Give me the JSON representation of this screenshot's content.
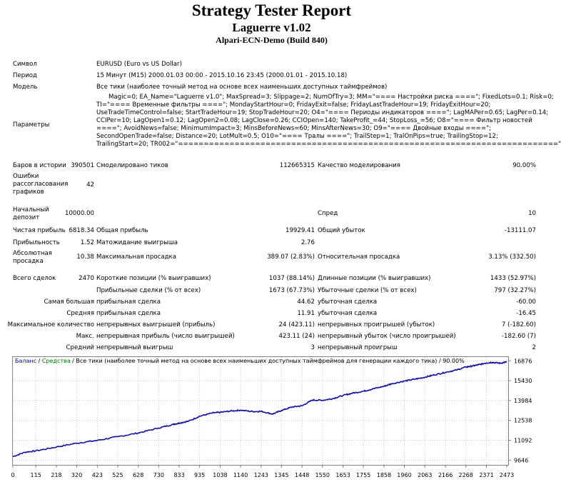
{
  "header": {
    "title": "Strategy Tester Report",
    "expert": "Laguerre v1.02",
    "server": "Alpari-ECN-Demo (Build 840)"
  },
  "info": {
    "symbol_label": "Символ",
    "symbol_value": "EURUSD (Euro vs US Dollar)",
    "period_label": "Период",
    "period_value": "15 Минут (M15) 2000.01.03 00:00 - 2015.10.16 23:45 (2000.01.01 - 2015.10.18)",
    "model_label": "Модель",
    "model_value": "Все тики (наиболее точный метод на основе всех наименьших доступных таймфреймов)",
    "params_label": "Параметры",
    "params_lines": [
      "Magic=0; EA_Name=\"Laguerre v1.0\"; MaxSpread=3; Slippage=2; NumOfTry=3; MM=\"==== Настройки риска ====\"; FixedLots=0.1; Risk=0;",
      "TI=\"==== Временные фильтры ====\"; MondayStartHour=0; FridayExit=false; FridayLastTradeHour=19; FridayExitHour=20;",
      "UseTradeTimeControl=false; StartTradeHour=19; StopTradeHour=20; O4=\"==== Периоды индикаторов ====\"; LagMAPer=0.65; LagPer=0.14;",
      "CCIPer=10; LagOpen1=0.12; LagOpen2=0.08; LagClose=0.26; CCIOpen=140; TakeProfit_=44; StopLoss_=56; O8=\"==== Фильтр новостей",
      "====\"; AvoidNews=false; MinimumImpact=3; MinsBeforeNews=60; MinsAfterNews=30; O9=\"==== Двойные входы ====\";",
      "SecondOpenTrade=false; Distance=20; LotMult=0.5; O10=\"==== Тралы ====\"; TrailStep=1; TralOnPips=true; TrailingStop=12;",
      "TrailingStart=20; TR002=\"==========================================================================\""
    ]
  },
  "stats": {
    "bars_label": "Баров в истории",
    "bars_value": "390501",
    "ticks_label": "Смоделировано тиков",
    "ticks_value": "112665315",
    "quality_label": "Качество моделирования",
    "quality_value": "90.00%",
    "errors_label_1": "Ошибки",
    "errors_label_2": "рассогласования",
    "errors_label_3": "графиков",
    "errors_value": "42",
    "deposit_label_1": "Начальный",
    "deposit_label_2": "депозит",
    "deposit_value": "10000.00",
    "spread_label": "Спред",
    "spread_value": "10",
    "net_label": "Чистая прибыль",
    "net_value": "6818.34",
    "gross_profit_label": "Общая прибыль",
    "gross_profit_value": "19929.41",
    "gross_loss_label": "Общий убыток",
    "gross_loss_value": "-13111.07",
    "pf_label": "Прибыльность",
    "pf_value": "1.52",
    "expected_label": "Матожидание выигрыша",
    "expected_value": "2.76",
    "abs_dd_label_1": "Абсолютная",
    "abs_dd_label_2": "просадка",
    "abs_dd_value": "10.38",
    "max_dd_label": "Максимальная просадка",
    "max_dd_value": "389.07 (2.83%)",
    "rel_dd_label": "Относительная просадка",
    "rel_dd_value": "3.13% (332.50)",
    "total_label": "Всего сделок",
    "total_value": "2470",
    "short_label": "Короткие позиции (% выигравших)",
    "short_value": "1037 (88.14%)",
    "long_label": "Длинные позиции (% выигравших)",
    "long_value": "1433 (52.97%)",
    "profit_trades_label": "Прибыльные сделки (% от всех)",
    "profit_trades_value": "1673 (67.73%)",
    "loss_trades_label": "Убыточные сделки (% от всех)",
    "loss_trades_value": "797 (32.27%)",
    "largest_label": "Самая большая",
    "largest_profit_label": "прибыльная сделка",
    "largest_profit_value": "44.62",
    "largest_loss_label": "убыточная сделка",
    "largest_loss_value": "-60.00",
    "average_label": "Средняя",
    "average_profit_label": "прибыльная сделка",
    "average_profit_value": "11.91",
    "average_loss_label": "убыточная сделка",
    "average_loss_value": "-16.45",
    "max_count_label": "Максимальное количество",
    "max_cons_wins_label": "непрерывных выигрышей (прибыль)",
    "max_cons_wins_value": "24 (423.11)",
    "max_cons_losses_label": "непрерывных проигрышей (убыток)",
    "max_cons_losses_value": "7 (-182.60)",
    "max_label": "Макс.",
    "max_cons_profit_label": "непрерывная прибыль (число выигрышей)",
    "max_cons_profit_value": "423.11 (24)",
    "max_cons_loss_label": "непрерывный убыток (число проигрышей)",
    "max_cons_loss_value": "-182.60 (7)",
    "avg_label": "Средний",
    "avg_cons_wins_label": "непрерывный выигрыш",
    "avg_cons_wins_value": "3",
    "avg_cons_losses_label": "непрерывный проигрыш",
    "avg_cons_losses_value": "2"
  },
  "chart_legend": {
    "balance": "Баланс",
    "sep1": " / ",
    "equity": "Средства",
    "rest": " / Все тики (наиболее точный метод на основе всех наименьших доступных таймфреймов для генерации каждого тика) / 90.00%"
  },
  "colors": {
    "balance": "#1010a0",
    "equity": "#008000",
    "grid": "#c8c8c8"
  },
  "chart_data": {
    "type": "line",
    "title": "",
    "xlabel": "",
    "ylabel": "",
    "x_ticks": [
      0,
      115,
      218,
      320,
      423,
      525,
      628,
      730,
      833,
      935,
      1038,
      1140,
      1243,
      1345,
      1448,
      1550,
      1653,
      1755,
      1858,
      1960,
      2063,
      2166,
      2268,
      2371,
      2473
    ],
    "y_ticks": [
      9646,
      11092,
      12538,
      13984,
      15430,
      16876
    ],
    "xlim": [
      0,
      2480
    ],
    "ylim": [
      9300,
      17150
    ],
    "series": [
      {
        "name": "Баланс",
        "x": [
          0,
          60,
          115,
          218,
          320,
          423,
          525,
          628,
          730,
          800,
          833,
          880,
          935,
          1000,
          1038,
          1090,
          1140,
          1200,
          1243,
          1300,
          1345,
          1400,
          1448,
          1500,
          1550,
          1600,
          1653,
          1700,
          1755,
          1800,
          1858,
          1900,
          1960,
          2010,
          2063,
          2110,
          2166,
          2220,
          2268,
          2300,
          2330,
          2371,
          2400,
          2440,
          2473
        ],
        "y": [
          9900,
          10220,
          10320,
          10600,
          10880,
          11080,
          11350,
          11620,
          11980,
          12240,
          12340,
          12480,
          12840,
          13080,
          13120,
          13220,
          13280,
          13180,
          13200,
          13000,
          13260,
          13520,
          13600,
          14020,
          14000,
          14120,
          14350,
          14520,
          14660,
          14820,
          15020,
          15220,
          15400,
          15530,
          15680,
          15850,
          16040,
          16200,
          16420,
          16500,
          16580,
          16720,
          16760,
          16700,
          16800
        ]
      }
    ]
  }
}
